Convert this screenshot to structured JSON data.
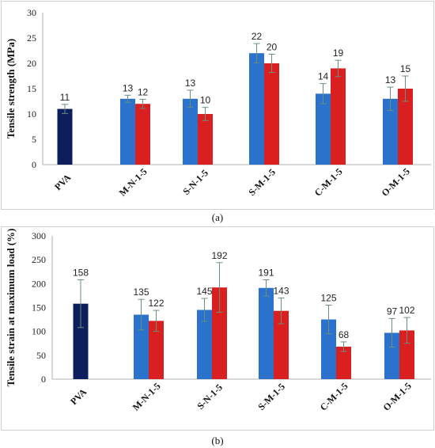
{
  "colors": {
    "pva": "#0d1e5c",
    "series_a": "#2a72cc",
    "series_b": "#d91f1f",
    "error_bar": "#6a8f7a",
    "axis": "#999999"
  },
  "chart_data": [
    {
      "type": "bar",
      "panel": "(a)",
      "ylabel": "Tensile strength (MPa)",
      "ylim": [
        0,
        30
      ],
      "yticks": [
        0,
        5,
        10,
        15,
        20,
        25,
        30
      ],
      "categories": [
        "PVA",
        "M-N-1-5",
        "S-N-1-5",
        "S-M-1-5",
        "C-M-1-5",
        "O-M-1-5"
      ],
      "bars": [
        {
          "category": "PVA",
          "slot": "single",
          "value": 11,
          "label": "11",
          "error": 0.9
        },
        {
          "category": "M-N-1-5",
          "slot": "a",
          "value": 13,
          "label": "13",
          "error": 0.7
        },
        {
          "category": "M-N-1-5",
          "slot": "b",
          "value": 12,
          "label": "12",
          "error": 0.9
        },
        {
          "category": "S-N-1-5",
          "slot": "a",
          "value": 13,
          "label": "13",
          "error": 1.7
        },
        {
          "category": "S-N-1-5",
          "slot": "b",
          "value": 10,
          "label": "10",
          "error": 1.3
        },
        {
          "category": "S-M-1-5",
          "slot": "a",
          "value": 22,
          "label": "22",
          "error": 1.9
        },
        {
          "category": "S-M-1-5",
          "slot": "b",
          "value": 20,
          "label": "20",
          "error": 1.8
        },
        {
          "category": "C-M-1-5",
          "slot": "a",
          "value": 14,
          "label": "14",
          "error": 2.0
        },
        {
          "category": "C-M-1-5",
          "slot": "b",
          "value": 19,
          "label": "19",
          "error": 1.6
        },
        {
          "category": "O-M-1-5",
          "slot": "a",
          "value": 13,
          "label": "13",
          "error": 2.3
        },
        {
          "category": "O-M-1-5",
          "slot": "b",
          "value": 15,
          "label": "15",
          "error": 2.5
        }
      ]
    },
    {
      "type": "bar",
      "panel": "(b)",
      "ylabel": "Tensile strain at maximum load (%)",
      "ylim": [
        0,
        300
      ],
      "yticks": [
        0,
        50,
        100,
        150,
        200,
        250,
        300
      ],
      "categories": [
        "PVA",
        "M-N-1-5",
        "S-N-1-5",
        "S-M-1-5",
        "C-M-1-5",
        "O-M-1-5"
      ],
      "bars": [
        {
          "category": "PVA",
          "slot": "single",
          "value": 158,
          "label": "158",
          "error": 50
        },
        {
          "category": "M-N-1-5",
          "slot": "a",
          "value": 135,
          "label": "135",
          "error": 32
        },
        {
          "category": "M-N-1-5",
          "slot": "b",
          "value": 122,
          "label": "122",
          "error": 22
        },
        {
          "category": "S-N-1-5",
          "slot": "a",
          "value": 145,
          "label": "145",
          "error": 24
        },
        {
          "category": "S-N-1-5",
          "slot": "b",
          "value": 192,
          "label": "192",
          "error": 52
        },
        {
          "category": "S-M-1-5",
          "slot": "a",
          "value": 191,
          "label": "191",
          "error": 17
        },
        {
          "category": "S-M-1-5",
          "slot": "b",
          "value": 143,
          "label": "143",
          "error": 27
        },
        {
          "category": "C-M-1-5",
          "slot": "a",
          "value": 125,
          "label": "125",
          "error": 30
        },
        {
          "category": "C-M-1-5",
          "slot": "b",
          "value": 68,
          "label": "68",
          "error": 10
        },
        {
          "category": "O-M-1-5",
          "slot": "a",
          "value": 97,
          "label": "97",
          "error": 30
        },
        {
          "category": "O-M-1-5",
          "slot": "b",
          "value": 102,
          "label": "102",
          "error": 27
        }
      ]
    }
  ]
}
